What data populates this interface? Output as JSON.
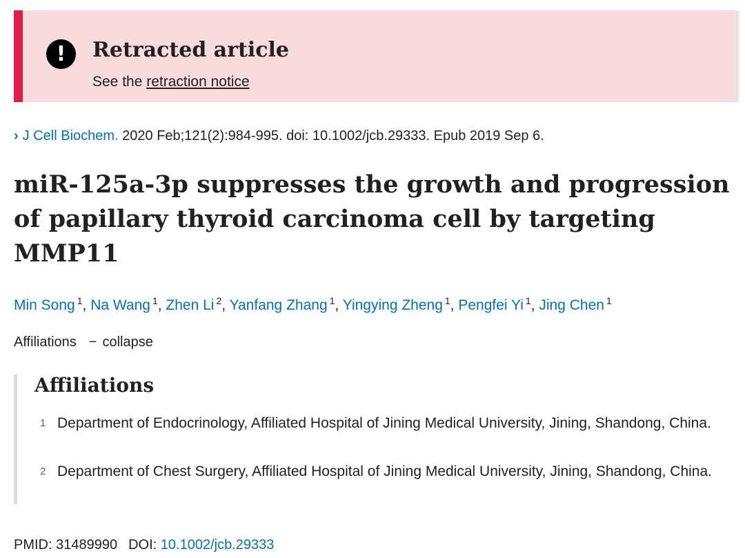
{
  "banner": {
    "title": "Retracted article",
    "prefix": "See the ",
    "link": "retraction notice",
    "icon": "exclamation-icon",
    "accent": "#e11d48",
    "background": "#f8dbdd"
  },
  "citation": {
    "journal": "J Cell Biochem.",
    "details": " 2020 Feb;121(2):984-995. doi: 10.1002/jcb.29333. Epub 2019 Sep 6."
  },
  "article": {
    "title": "miR-125a-3p suppresses the growth and progression of papillary thyroid carcinoma cell by targeting MMP11"
  },
  "authors": [
    {
      "name": "Min Song",
      "aff": "1"
    },
    {
      "name": "Na Wang",
      "aff": "1"
    },
    {
      "name": "Zhen Li",
      "aff": "2"
    },
    {
      "name": "Yanfang Zhang",
      "aff": "1"
    },
    {
      "name": "Yingying Zheng",
      "aff": "1"
    },
    {
      "name": "Pengfei Yi",
      "aff": "1"
    },
    {
      "name": "Jing Chen",
      "aff": "1"
    }
  ],
  "affiliations": {
    "toggle_label": "Affiliations",
    "toggle_symbol": "−",
    "toggle_action": "collapse",
    "heading": "Affiliations",
    "items": [
      {
        "num": "1",
        "text": "Department of Endocrinology, Affiliated Hospital of Jining Medical University, Jining, Shandong, China."
      },
      {
        "num": "2",
        "text": "Department of Chest Surgery, Affiliated Hospital of Jining Medical University, Jining, Shandong, China."
      }
    ]
  },
  "identifiers": {
    "pmid_label": "PMID: ",
    "pmid": "31489990",
    "doi_label": "DOI: ",
    "doi": "10.1002/jcb.29333"
  },
  "colors": {
    "link": "#0071bc",
    "text": "#212121"
  }
}
